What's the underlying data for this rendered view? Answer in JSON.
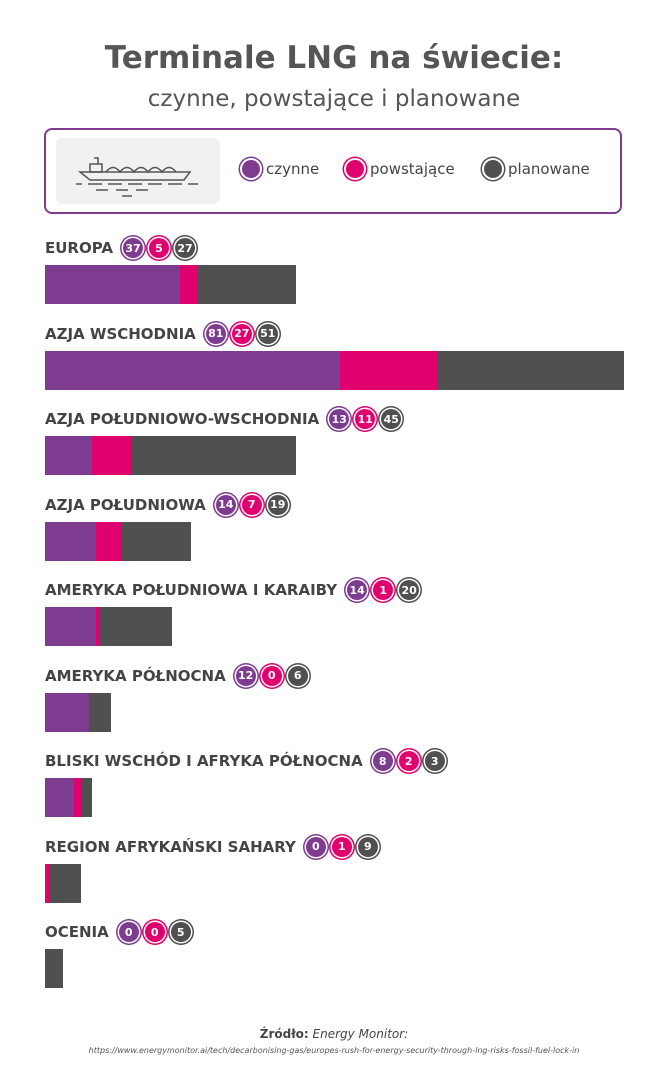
{
  "header": {
    "title": "Terminale LNG na świecie:",
    "subtitle": "czynne, powstające i planowane"
  },
  "colors": {
    "czynne": "#7d3c8f",
    "powstajace": "#e0006e",
    "planowane": "#505050"
  },
  "chart_data": {
    "type": "bar",
    "stacked": true,
    "orientation": "horizontal",
    "series_names": [
      "czynne",
      "powstające",
      "planowane"
    ],
    "categories": [
      "EUROPA",
      "AZJA WSCHODNIA",
      "AZJA POŁUDNIOWO-WSCHODNIA",
      "AZJA POŁUDNIOWA",
      "AMERYKA POŁUDNIOWA I KARAIBY",
      "AMERYKA PÓŁNOCNA",
      "BLISKI WSCHÓD I AFRYKA PÓŁNOCNA",
      "REGION AFRYKAŃSKI SAHARY",
      "OCENIA"
    ],
    "series": [
      {
        "name": "czynne",
        "values": [
          37,
          81,
          13,
          14,
          14,
          12,
          8,
          0,
          0
        ]
      },
      {
        "name": "powstające",
        "values": [
          5,
          27,
          11,
          7,
          1,
          0,
          2,
          1,
          0
        ]
      },
      {
        "name": "planowane",
        "values": [
          27,
          51,
          45,
          19,
          20,
          6,
          3,
          9,
          5
        ]
      }
    ]
  },
  "footer": {
    "source_label": "Źródło:",
    "source_name": "Energy Monitor:",
    "url": "https://www.energymonitor.ai/tech/decarbonising-gas/europes-rush-for-energy-security-through-lng-risks-fossil-fuel-lock-in"
  }
}
